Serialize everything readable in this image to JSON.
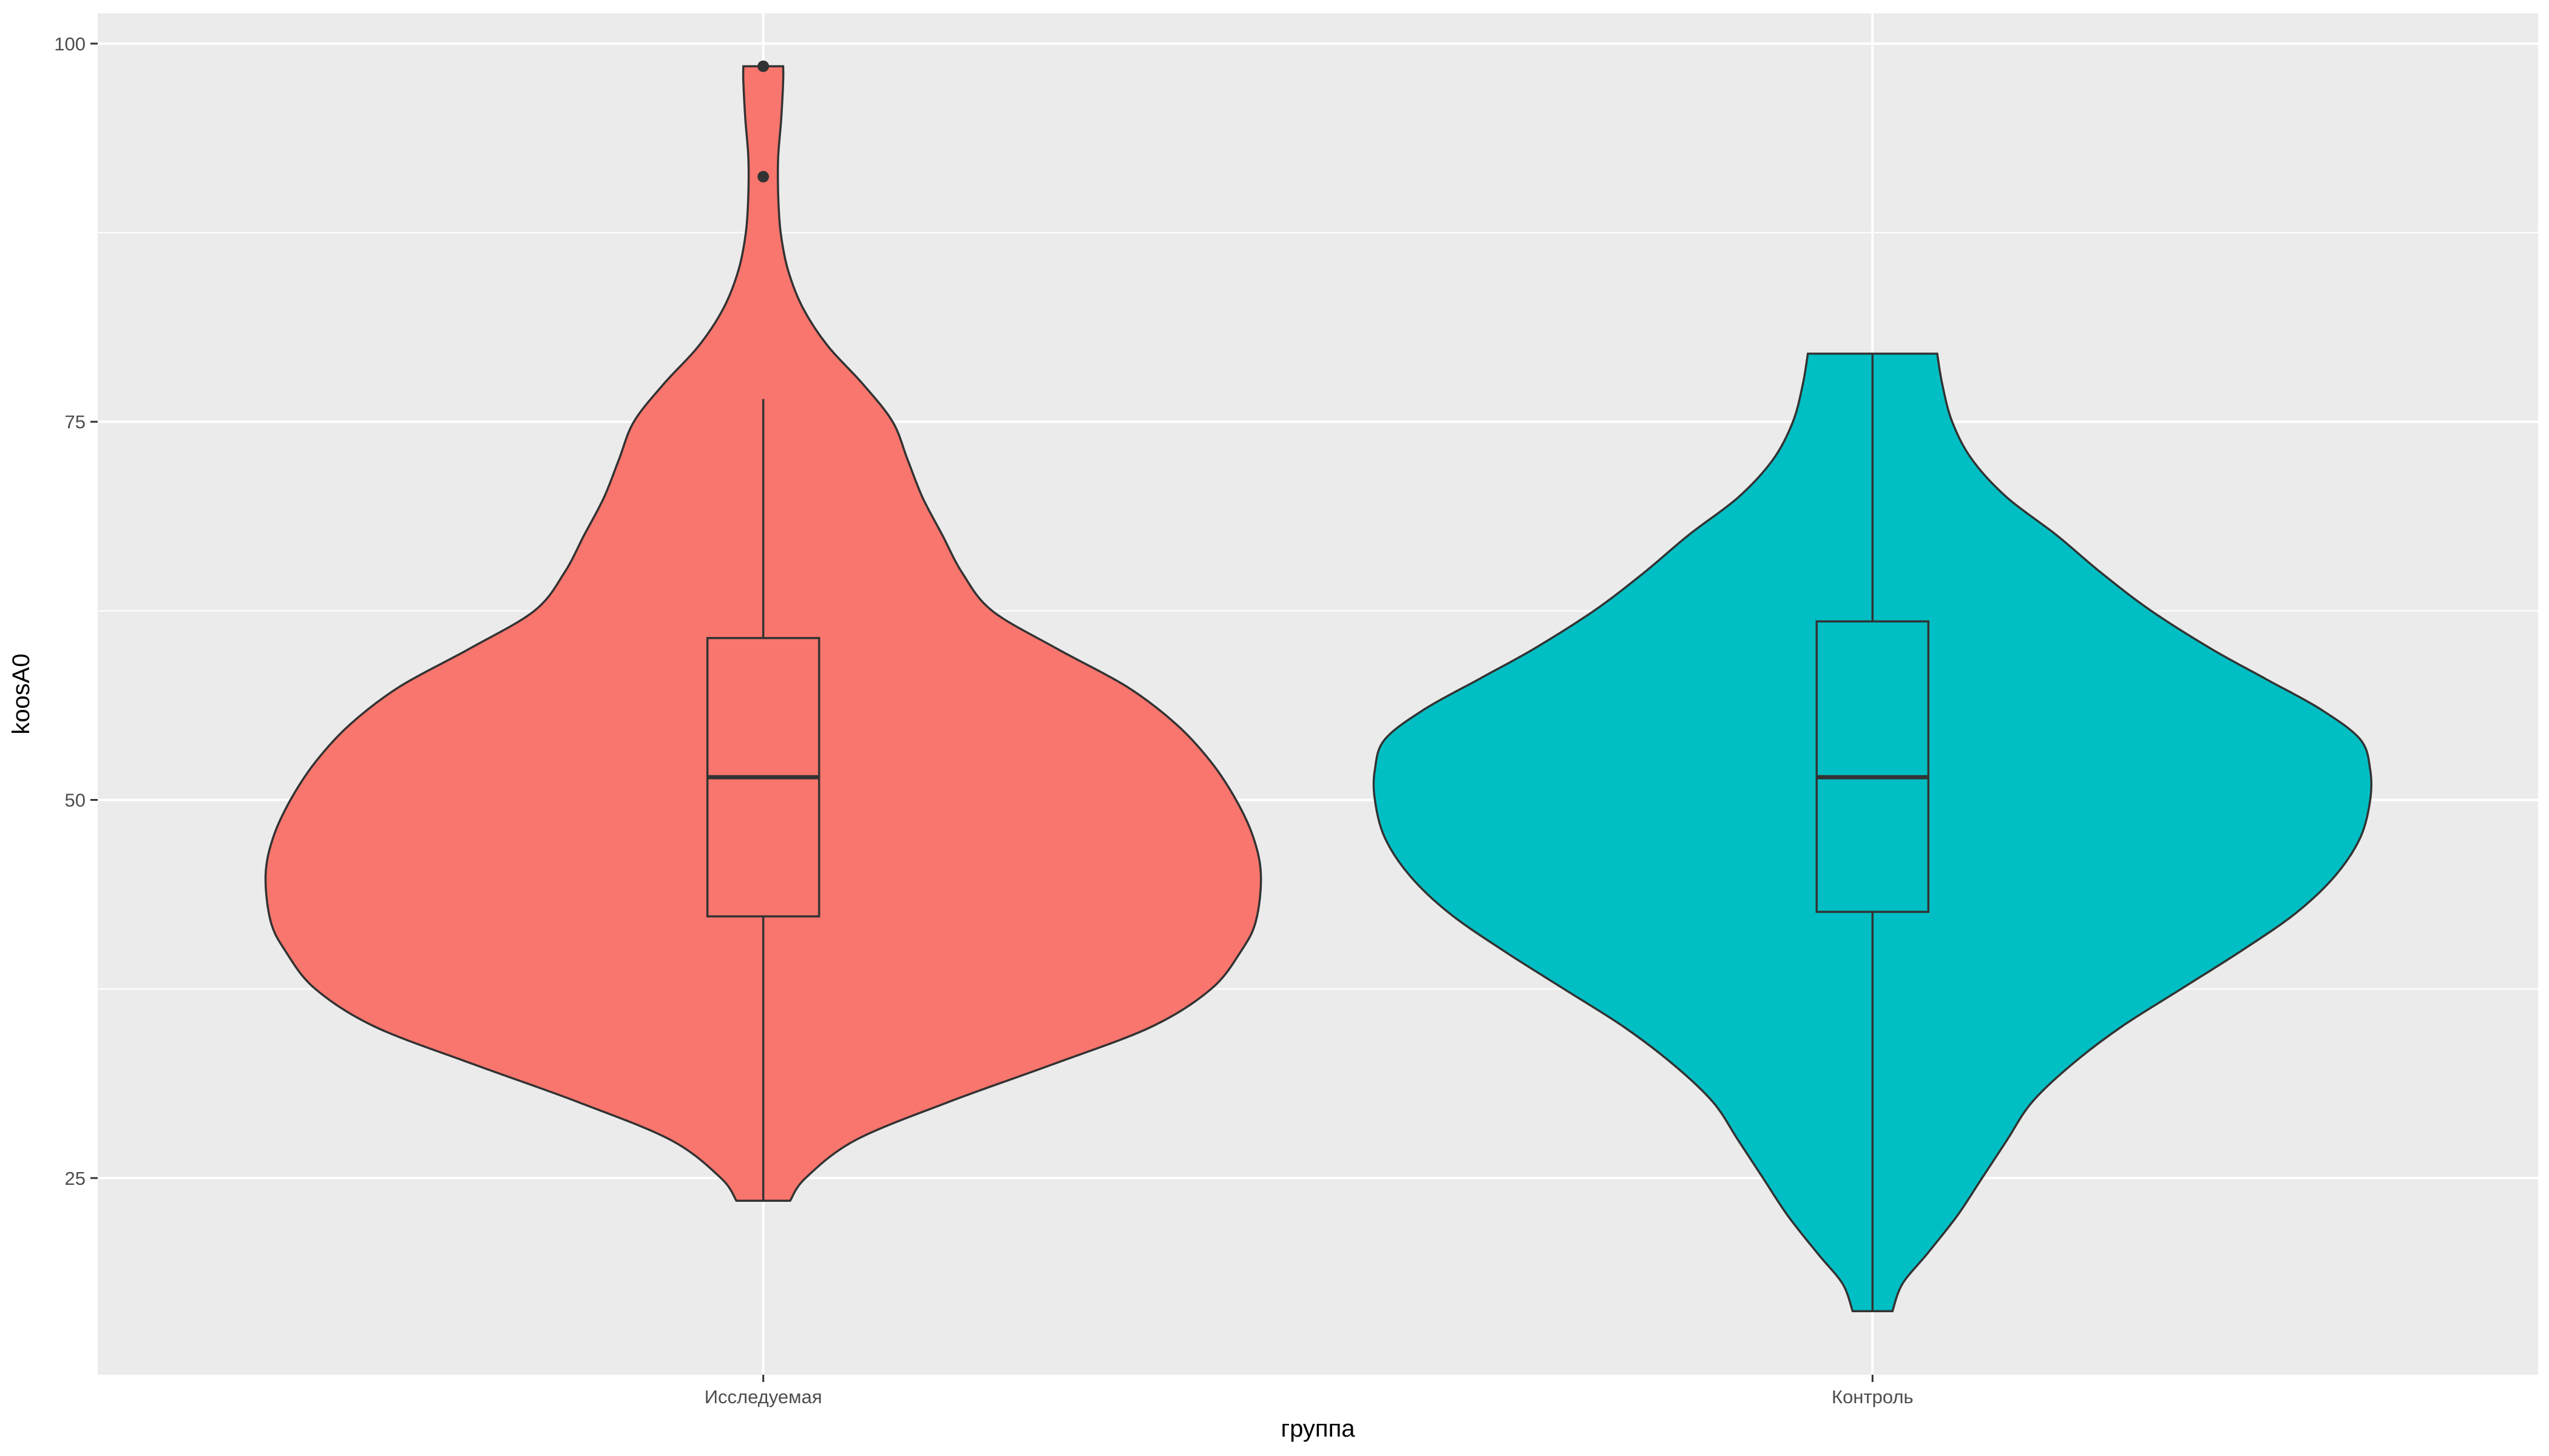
{
  "chart_data": {
    "type": "violin",
    "xlabel": "группа",
    "ylabel": "koosA0",
    "ylim": [
      12,
      102
    ],
    "yticks": [
      25,
      50,
      75,
      100
    ],
    "yminor": [
      37.5,
      62.5,
      87.5
    ],
    "grid": true,
    "legend": "none",
    "categories": [
      "Исследуемая",
      "Контроль"
    ],
    "groups": [
      {
        "category": "Исследуемая",
        "fill": "#F8766D",
        "violin_min": 23.5,
        "violin_max": 98.5,
        "density_profile": [
          [
            23.5,
            0.054
          ],
          [
            25,
            0.085
          ],
          [
            27.5,
            0.185
          ],
          [
            30,
            0.37
          ],
          [
            32.5,
            0.58
          ],
          [
            35,
            0.78
          ],
          [
            37.5,
            0.9
          ],
          [
            40,
            0.96
          ],
          [
            42,
            0.99
          ],
          [
            45,
            1.0
          ],
          [
            47.5,
            0.985
          ],
          [
            50,
            0.95
          ],
          [
            52.5,
            0.9
          ],
          [
            55,
            0.83
          ],
          [
            57.5,
            0.73
          ],
          [
            60,
            0.59
          ],
          [
            62.5,
            0.46
          ],
          [
            65,
            0.4
          ],
          [
            67.5,
            0.36
          ],
          [
            70,
            0.32
          ],
          [
            72.5,
            0.29
          ],
          [
            75,
            0.26
          ],
          [
            77.5,
            0.2
          ],
          [
            80,
            0.13
          ],
          [
            82.5,
            0.08
          ],
          [
            85,
            0.05
          ],
          [
            87.5,
            0.035
          ],
          [
            90,
            0.03
          ],
          [
            92.5,
            0.03
          ],
          [
            95,
            0.036
          ],
          [
            97.5,
            0.04
          ],
          [
            98.5,
            0.04
          ]
        ],
        "box": {
          "lower_whisker": 23.5,
          "q1": 42.3,
          "median": 51.5,
          "q3": 60.7,
          "upper_whisker": 76.5
        },
        "outliers": [
          91.2,
          98.5
        ]
      },
      {
        "category": "Контроль",
        "fill": "#00BFC4",
        "violin_min": 16.2,
        "violin_max": 79.5,
        "density_profile": [
          [
            16.2,
            0.04
          ],
          [
            18,
            0.06
          ],
          [
            20,
            0.11
          ],
          [
            22.5,
            0.17
          ],
          [
            25,
            0.22
          ],
          [
            27.5,
            0.27
          ],
          [
            30,
            0.32
          ],
          [
            32.5,
            0.4
          ],
          [
            35,
            0.5
          ],
          [
            37.5,
            0.62
          ],
          [
            40,
            0.74
          ],
          [
            42.5,
            0.85
          ],
          [
            45,
            0.93
          ],
          [
            47.5,
            0.98
          ],
          [
            50,
            1.0
          ],
          [
            52,
            1.0
          ],
          [
            54,
            0.98
          ],
          [
            56,
            0.9
          ],
          [
            58,
            0.79
          ],
          [
            60,
            0.68
          ],
          [
            62.5,
            0.56
          ],
          [
            65,
            0.46
          ],
          [
            67.5,
            0.37
          ],
          [
            70,
            0.27
          ],
          [
            72.5,
            0.2
          ],
          [
            75,
            0.16
          ],
          [
            77.5,
            0.14
          ],
          [
            79.5,
            0.13
          ]
        ],
        "box": {
          "lower_whisker": 16.2,
          "q1": 42.6,
          "median": 51.5,
          "q3": 61.8,
          "upper_whisker": 79.5
        },
        "outliers": []
      }
    ]
  }
}
